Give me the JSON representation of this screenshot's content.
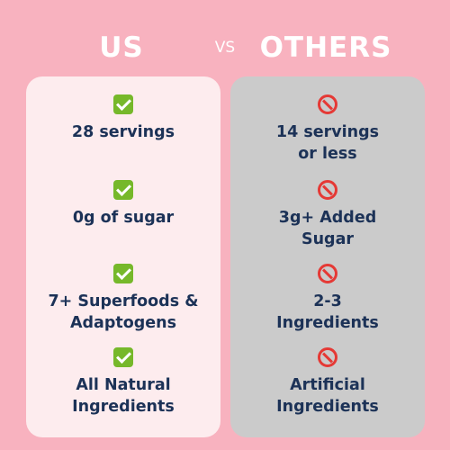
{
  "header": {
    "us": "US",
    "vs": "VS",
    "others": "OTHERS"
  },
  "us": {
    "items": [
      {
        "icon": "check-icon",
        "label": "28 servings"
      },
      {
        "icon": "check-icon",
        "label": "0g of sugar"
      },
      {
        "icon": "check-icon",
        "label": "7+ Superfoods &\nAdaptogens"
      },
      {
        "icon": "check-icon",
        "label": "All Natural\nIngredients"
      }
    ]
  },
  "others": {
    "items": [
      {
        "icon": "prohibited-icon",
        "label": "14 servings\nor less"
      },
      {
        "icon": "prohibited-icon",
        "label": "3g+ Added\nSugar"
      },
      {
        "icon": "prohibited-icon",
        "label": "2-3\nIngredients"
      },
      {
        "icon": "prohibited-icon",
        "label": "Artificial\nIngredients"
      }
    ]
  },
  "colors": {
    "background": "#f8b2bf",
    "us_panel": "#fdecee",
    "others_panel": "#cbcbcb",
    "text": "#1c3257",
    "check": "#76b82a",
    "prohibited": "#e53935"
  }
}
